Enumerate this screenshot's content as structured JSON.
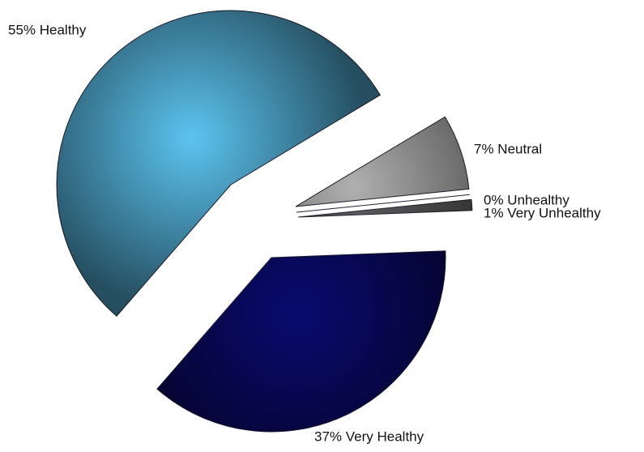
{
  "chart_data": {
    "type": "pie",
    "values": [
      55,
      7,
      0,
      1,
      37
    ],
    "value_labels": [
      "55% Healthy",
      "7% Neutral",
      "0% Unhealthy",
      "1% Very Unhealthy",
      "37% Very Healthy"
    ],
    "colors": [
      "#5cc4f0",
      "#b0b0b0",
      "#e0e0e0",
      "#5a5a5a",
      "#0a0a70"
    ]
  }
}
